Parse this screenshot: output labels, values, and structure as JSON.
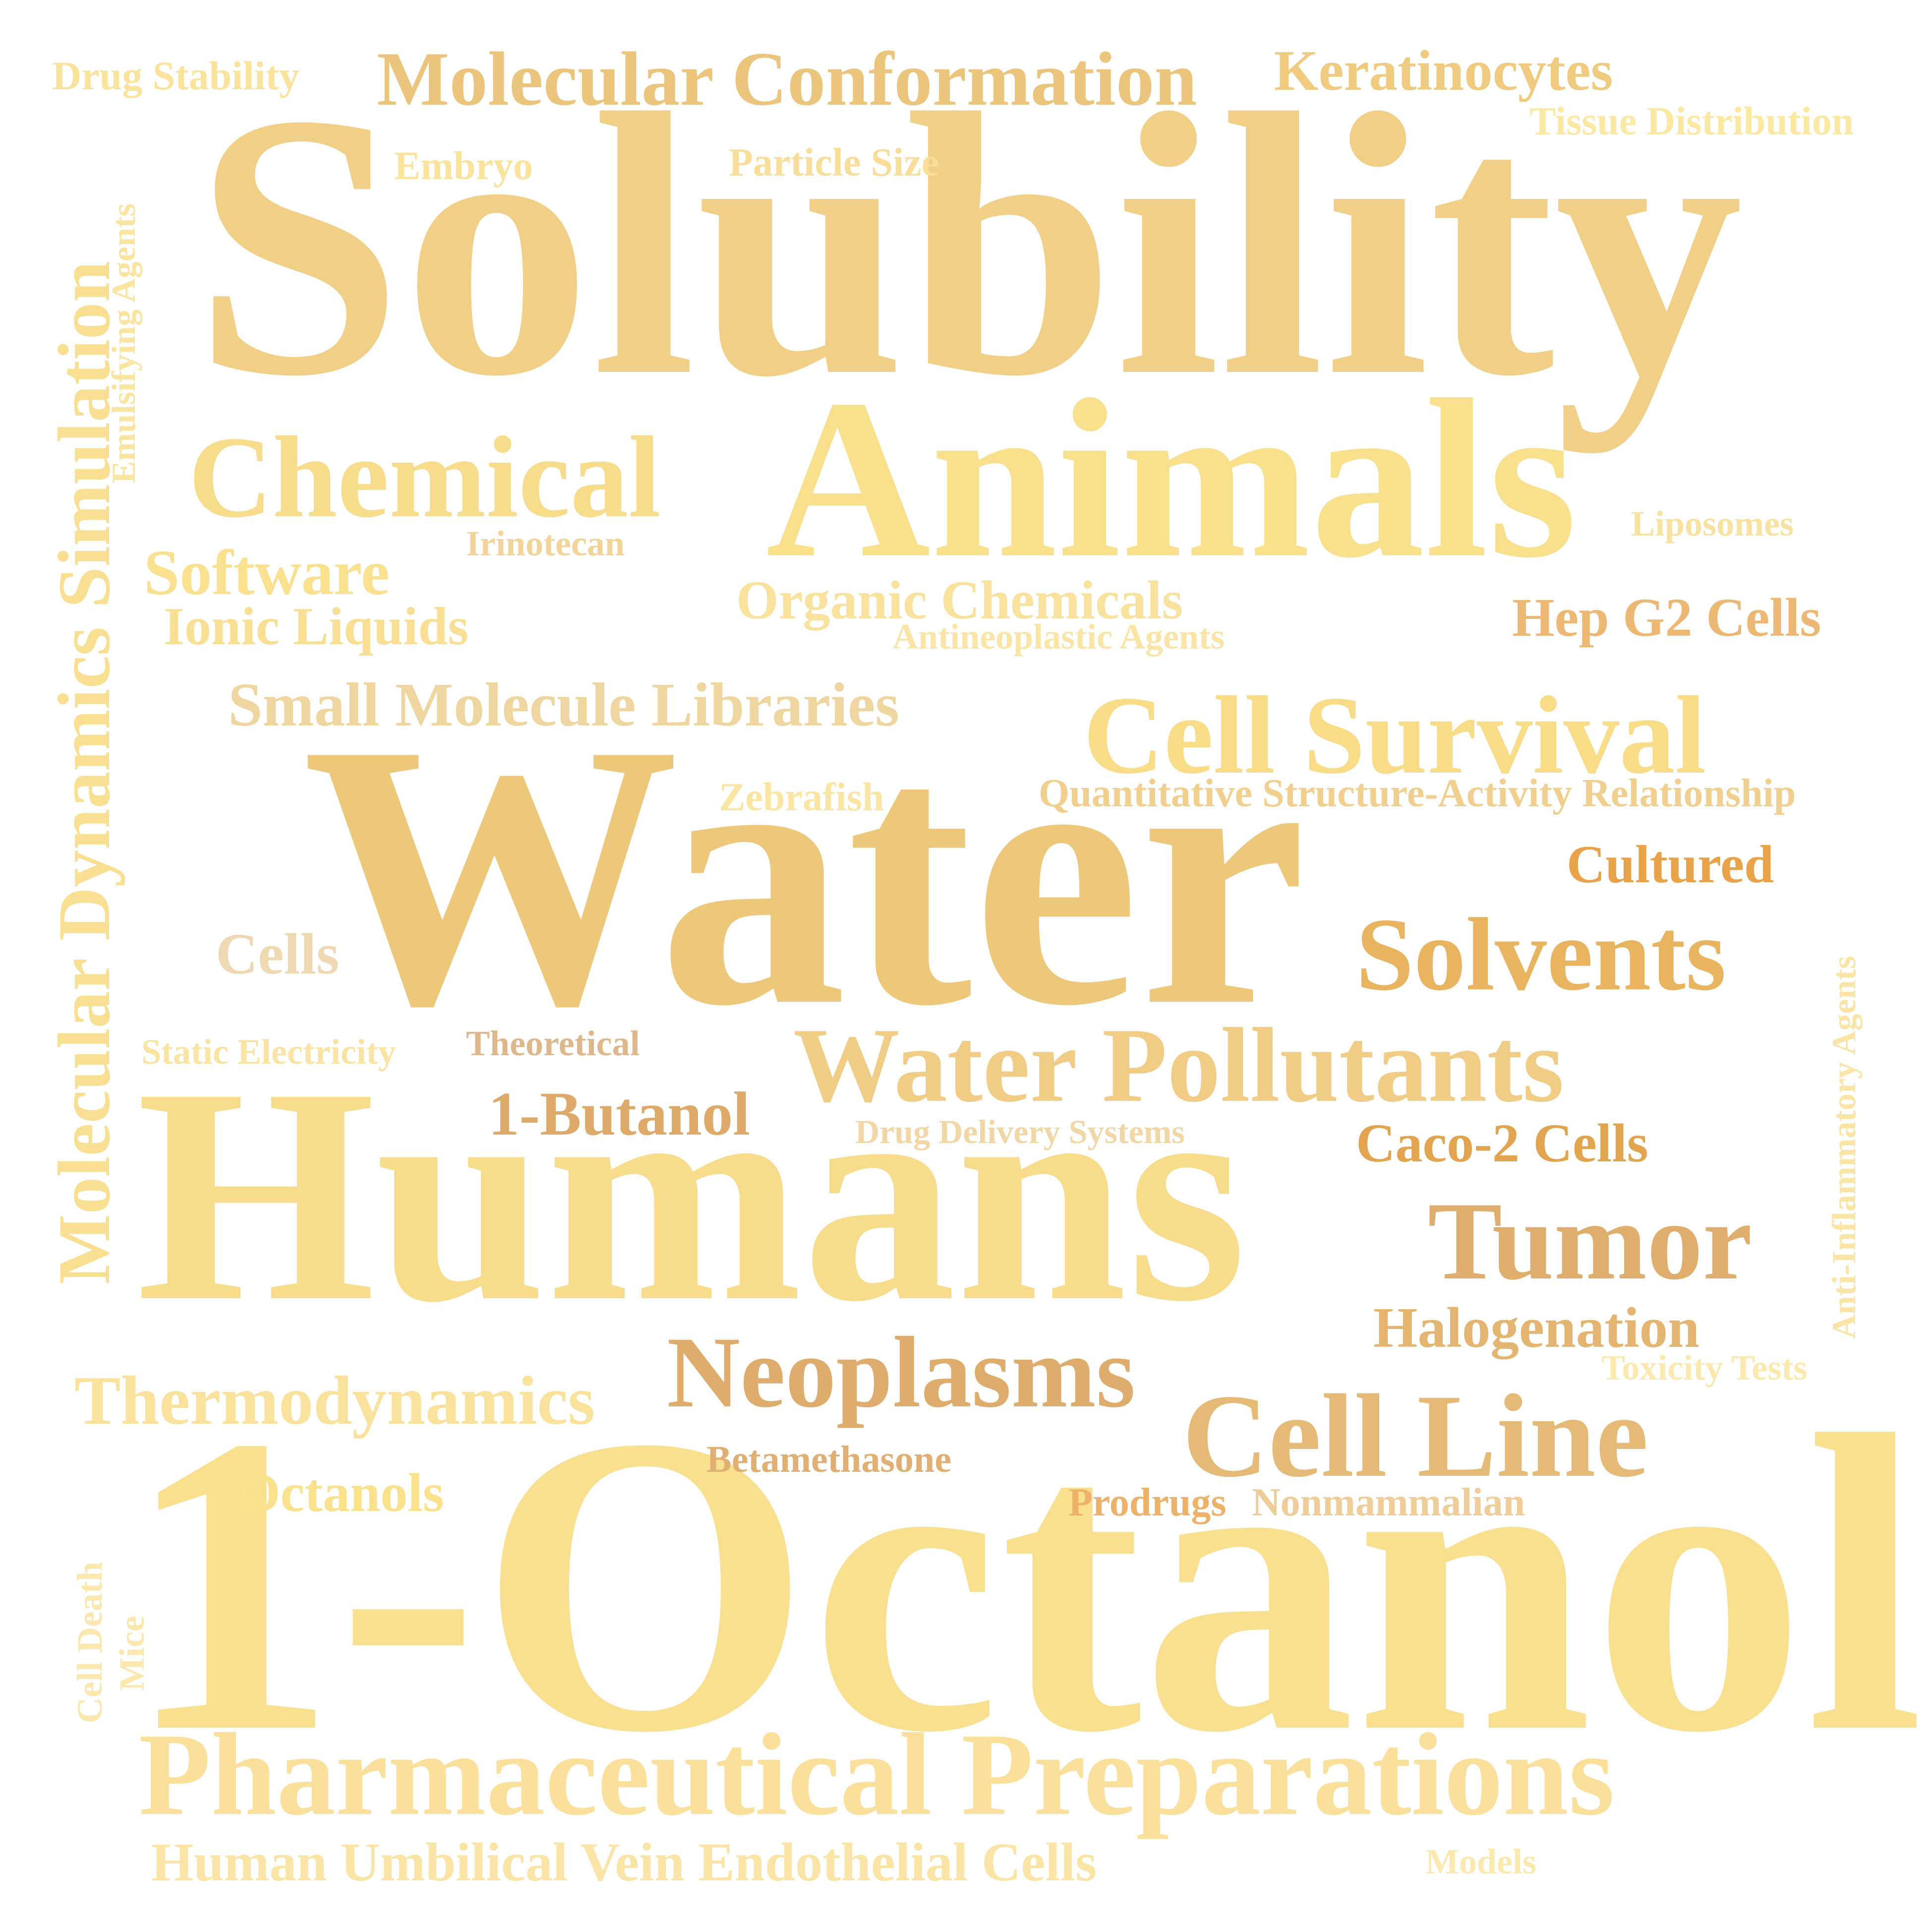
{
  "words": [
    {
      "id": "solubility",
      "text": "Solubility",
      "color": "#F1CF86"
    },
    {
      "id": "water",
      "text": "Water",
      "color": "#EEC87A"
    },
    {
      "id": "humans",
      "text": "Humans",
      "color": "#F7DC8C"
    },
    {
      "id": "octanol",
      "text": "1-Octanol",
      "color": "#F9E08E"
    },
    {
      "id": "animals",
      "text": "Animals",
      "color": "#F8E08D"
    },
    {
      "id": "chemical",
      "text": "Chemical",
      "color": "#F7DC8C"
    },
    {
      "id": "molecular-conformation",
      "text": "Molecular Conformation",
      "color": "#ECC57D"
    },
    {
      "id": "keratinocytes",
      "text": "Keratinocytes",
      "color": "#F0CB7F"
    },
    {
      "id": "drug-stability",
      "text": "Drug Stability",
      "color": "#FAE39C"
    },
    {
      "id": "tissue-distribution",
      "text": "Tissue Distribution",
      "color": "#FBE8A2"
    },
    {
      "id": "embryo",
      "text": "Embryo",
      "color": "#FAE39C"
    },
    {
      "id": "particle-size",
      "text": "Particle Size",
      "color": "#F8DE98"
    },
    {
      "id": "emulsifying-agents",
      "text": "Emulsifying Agents",
      "color": "#FAE5A0"
    },
    {
      "id": "md-simulation",
      "text": "Molecular Dynamics Simulation",
      "color": "#F8DF92"
    },
    {
      "id": "software",
      "text": "Software",
      "color": "#F9E190"
    },
    {
      "id": "irinotecan",
      "text": "Irinotecan",
      "color": "#F2D398"
    },
    {
      "id": "ionic-liquids",
      "text": "Ionic Liquids",
      "color": "#F9DF94"
    },
    {
      "id": "organic-chemicals",
      "text": "Organic Chemicals",
      "color": "#F9E29E"
    },
    {
      "id": "antineoplastic-agents",
      "text": "Antineoplastic Agents",
      "color": "#FAE5A6"
    },
    {
      "id": "liposomes",
      "text": "Liposomes",
      "color": "#F9E2A0"
    },
    {
      "id": "hep-g2-cells",
      "text": "Hep G2 Cells",
      "color": "#EDB873"
    },
    {
      "id": "small-molecule-libraries",
      "text": "Small Molecule Libraries",
      "color": "#EFD6A0"
    },
    {
      "id": "cell-survival",
      "text": "Cell Survival",
      "color": "#F8DC88"
    },
    {
      "id": "zebrafish",
      "text": "Zebrafish",
      "color": "#FAE6A2"
    },
    {
      "id": "qsar",
      "text": "Quantitative Structure-Activity Relationship",
      "color": "#F1CF8E"
    },
    {
      "id": "cultured",
      "text": "Cultured",
      "color": "#EAA249"
    },
    {
      "id": "cells",
      "text": "Cells",
      "color": "#EED9B2"
    },
    {
      "id": "solvents",
      "text": "Solvents",
      "color": "#E9B460"
    },
    {
      "id": "anti-inflammatory",
      "text": "Anti-Inflammatory Agents",
      "color": "#FAE5A6"
    },
    {
      "id": "static-electricity",
      "text": "Static Electricity",
      "color": "#FAE4A4"
    },
    {
      "id": "theoretical",
      "text": "Theoretical",
      "color": "#DEB88A"
    },
    {
      "id": "water-pollutants",
      "text": "Water Pollutants",
      "color": "#F0CC84"
    },
    {
      "id": "butanol",
      "text": "1-Butanol",
      "color": "#DDAA6A"
    },
    {
      "id": "drug-delivery",
      "text": "Drug Delivery Systems",
      "color": "#F2D7A6"
    },
    {
      "id": "caco2",
      "text": "Caco-2 Cells",
      "color": "#E2A44E"
    },
    {
      "id": "tumor",
      "text": "Tumor",
      "color": "#DFAD6C"
    },
    {
      "id": "halogenation",
      "text": "Halogenation",
      "color": "#E4B571"
    },
    {
      "id": "toxicity-tests",
      "text": "Toxicity Tests",
      "color": "#FBE9AE"
    },
    {
      "id": "thermodynamics",
      "text": "Thermodynamics",
      "color": "#FAE29C"
    },
    {
      "id": "neoplasms",
      "text": "Neoplasms",
      "color": "#DEAC6C"
    },
    {
      "id": "cell-line",
      "text": "Cell Line",
      "color": "#E4BA76"
    },
    {
      "id": "betamethasone",
      "text": "Betamethasone",
      "color": "#E0AF74"
    },
    {
      "id": "octanols",
      "text": "Octanols",
      "color": "#FAE28C"
    },
    {
      "id": "prodrugs",
      "text": "Prodrugs",
      "color": "#EDB26A"
    },
    {
      "id": "nonmammalian",
      "text": "Nonmammalian",
      "color": "#EFCD98"
    },
    {
      "id": "cell-death",
      "text": "Cell Death",
      "color": "#FBE8AE"
    },
    {
      "id": "mice",
      "text": "Mice",
      "color": "#FBE8AE"
    },
    {
      "id": "pharmaceutical-preparations",
      "text": "Pharmaceutical Preparations",
      "color": "#FAE09A"
    },
    {
      "id": "huvec",
      "text": "Human Umbilical Vein Endothelial Cells",
      "color": "#FAE4A6"
    },
    {
      "id": "models",
      "text": "Models",
      "color": "#FBE9B0"
    }
  ]
}
